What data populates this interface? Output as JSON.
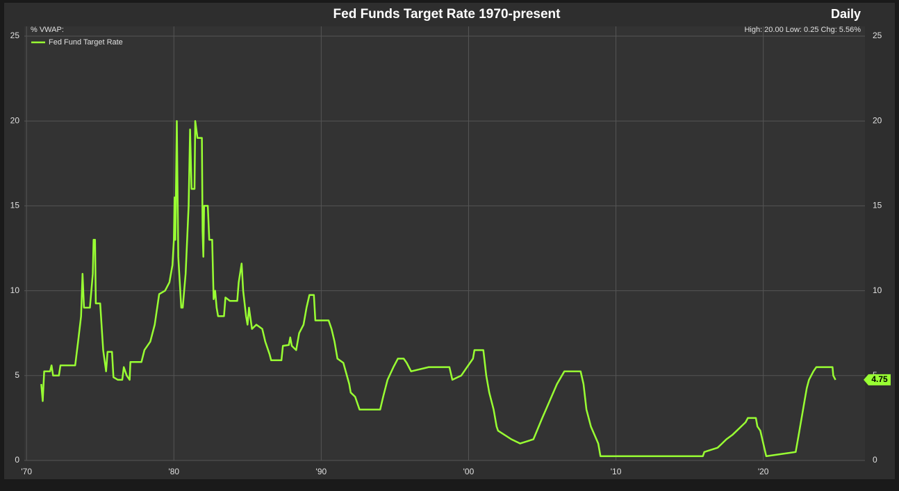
{
  "chart_data": {
    "type": "line",
    "title": "Fed Funds Target Rate 1970-present",
    "period": "Daily",
    "y_label": "%  VWAP:",
    "stats": "High: 20.00 Low: 0.25 Chg: 5.56%",
    "xlim": [
      1969.85,
      2026.9
    ],
    "ylim": [
      0,
      25
    ],
    "xticks": [
      {
        "value": 1970,
        "label": "'70"
      },
      {
        "value": 1980,
        "label": "'80"
      },
      {
        "value": 1990,
        "label": "'90"
      },
      {
        "value": 2000,
        "label": "'00"
      },
      {
        "value": 2010,
        "label": "'10"
      },
      {
        "value": 2020,
        "label": "'20"
      }
    ],
    "yticks": [
      0,
      5,
      10,
      15,
      20,
      25
    ],
    "grid": true,
    "legend": "upper left",
    "x": [
      1971.0,
      1971.1,
      1971.2,
      1971.6,
      1971.7,
      1971.8,
      1972.2,
      1972.3,
      1973.3,
      1973.5,
      1973.7,
      1973.8,
      1973.9,
      1974.3,
      1974.5,
      1974.55,
      1974.65,
      1974.7,
      1975.0,
      1975.2,
      1975.4,
      1975.5,
      1975.8,
      1975.9,
      1976.2,
      1976.5,
      1976.6,
      1976.8,
      1977.0,
      1977.05,
      1977.8,
      1978.0,
      1978.4,
      1978.7,
      1979.0,
      1979.4,
      1979.7,
      1979.9,
      1980.0,
      1980.05,
      1980.1,
      1980.2,
      1980.3,
      1980.5,
      1980.6,
      1980.8,
      1981.0,
      1981.1,
      1981.2,
      1981.4,
      1981.45,
      1981.6,
      1981.9,
      1981.95,
      1982.0,
      1982.05,
      1982.3,
      1982.4,
      1982.6,
      1982.7,
      1982.8,
      1982.9,
      1983.0,
      1983.4,
      1983.5,
      1983.8,
      1984.3,
      1984.4,
      1984.6,
      1984.7,
      1984.9,
      1985.0,
      1985.1,
      1985.3,
      1985.6,
      1986.0,
      1986.2,
      1986.5,
      1986.6,
      1987.3,
      1987.4,
      1987.8,
      1987.9,
      1988.0,
      1988.3,
      1988.5,
      1988.8,
      1989.0,
      1989.2,
      1989.5,
      1989.6,
      1990.5,
      1990.7,
      1990.9,
      1991.1,
      1991.5,
      1991.9,
      1992.0,
      1992.3,
      1992.6,
      1994.0,
      1994.2,
      1994.5,
      1994.9,
      1995.2,
      1995.6,
      1995.8,
      1996.1,
      1997.3,
      1998.7,
      1998.9,
      1999.5,
      1999.9,
      2000.3,
      2000.4,
      2001.0,
      2001.2,
      2001.4,
      2001.7,
      2001.9,
      2002.0,
      2002.9,
      2003.5,
      2004.4,
      2005.0,
      2005.5,
      2006.0,
      2006.5,
      2007.6,
      2007.8,
      2008.0,
      2008.3,
      2008.8,
      2008.95,
      2015.9,
      2016.0,
      2016.9,
      2017.2,
      2017.5,
      2017.9,
      2018.2,
      2018.5,
      2018.8,
      2018.95,
      2019.5,
      2019.6,
      2019.8,
      2020.2,
      2022.2,
      2022.4,
      2022.6,
      2022.8,
      2022.95,
      2023.1,
      2023.4,
      2023.6,
      2024.7,
      2024.75,
      2024.9
    ],
    "series": [
      {
        "name": "Fed Fund Target Rate",
        "color": "#99ff33",
        "values": [
          4.5,
          3.5,
          5.25,
          5.25,
          5.6,
          5.0,
          5.0,
          5.6,
          5.6,
          7.0,
          8.5,
          11.0,
          9.0,
          9.0,
          11.0,
          13.0,
          13.0,
          9.25,
          9.25,
          6.5,
          5.25,
          6.4,
          6.4,
          4.9,
          4.75,
          4.75,
          5.5,
          5.0,
          4.75,
          5.8,
          5.8,
          6.5,
          7.0,
          8.0,
          9.8,
          10.0,
          10.5,
          11.5,
          13.0,
          15.5,
          13.0,
          20.0,
          12.0,
          9.0,
          9.0,
          11.0,
          15.0,
          19.5,
          16.0,
          16.0,
          20.0,
          19.0,
          19.0,
          13.5,
          12.0,
          15.0,
          15.0,
          13.0,
          13.0,
          9.5,
          10.0,
          9.0,
          8.5,
          8.5,
          9.6,
          9.4,
          9.4,
          10.5,
          11.6,
          10.0,
          8.5,
          8.0,
          9.0,
          7.75,
          8.0,
          7.75,
          7.0,
          6.25,
          5.9,
          5.9,
          6.75,
          6.8,
          7.25,
          6.75,
          6.5,
          7.5,
          8.0,
          9.0,
          9.75,
          9.75,
          8.25,
          8.25,
          7.75,
          7.0,
          6.0,
          5.75,
          4.5,
          4.0,
          3.75,
          3.0,
          3.0,
          3.75,
          4.75,
          5.5,
          6.0,
          6.0,
          5.75,
          5.25,
          5.5,
          5.5,
          4.75,
          5.0,
          5.5,
          6.0,
          6.5,
          6.5,
          5.0,
          4.0,
          3.0,
          2.0,
          1.75,
          1.25,
          1.0,
          1.25,
          2.5,
          3.5,
          4.5,
          5.25,
          5.25,
          4.5,
          3.0,
          2.0,
          1.0,
          0.25,
          0.25,
          0.5,
          0.75,
          1.0,
          1.25,
          1.5,
          1.75,
          2.0,
          2.25,
          2.5,
          2.5,
          2.0,
          1.75,
          0.25,
          0.5,
          1.5,
          2.5,
          3.5,
          4.25,
          4.75,
          5.25,
          5.5,
          5.5,
          5.0,
          4.75
        ]
      }
    ]
  }
}
